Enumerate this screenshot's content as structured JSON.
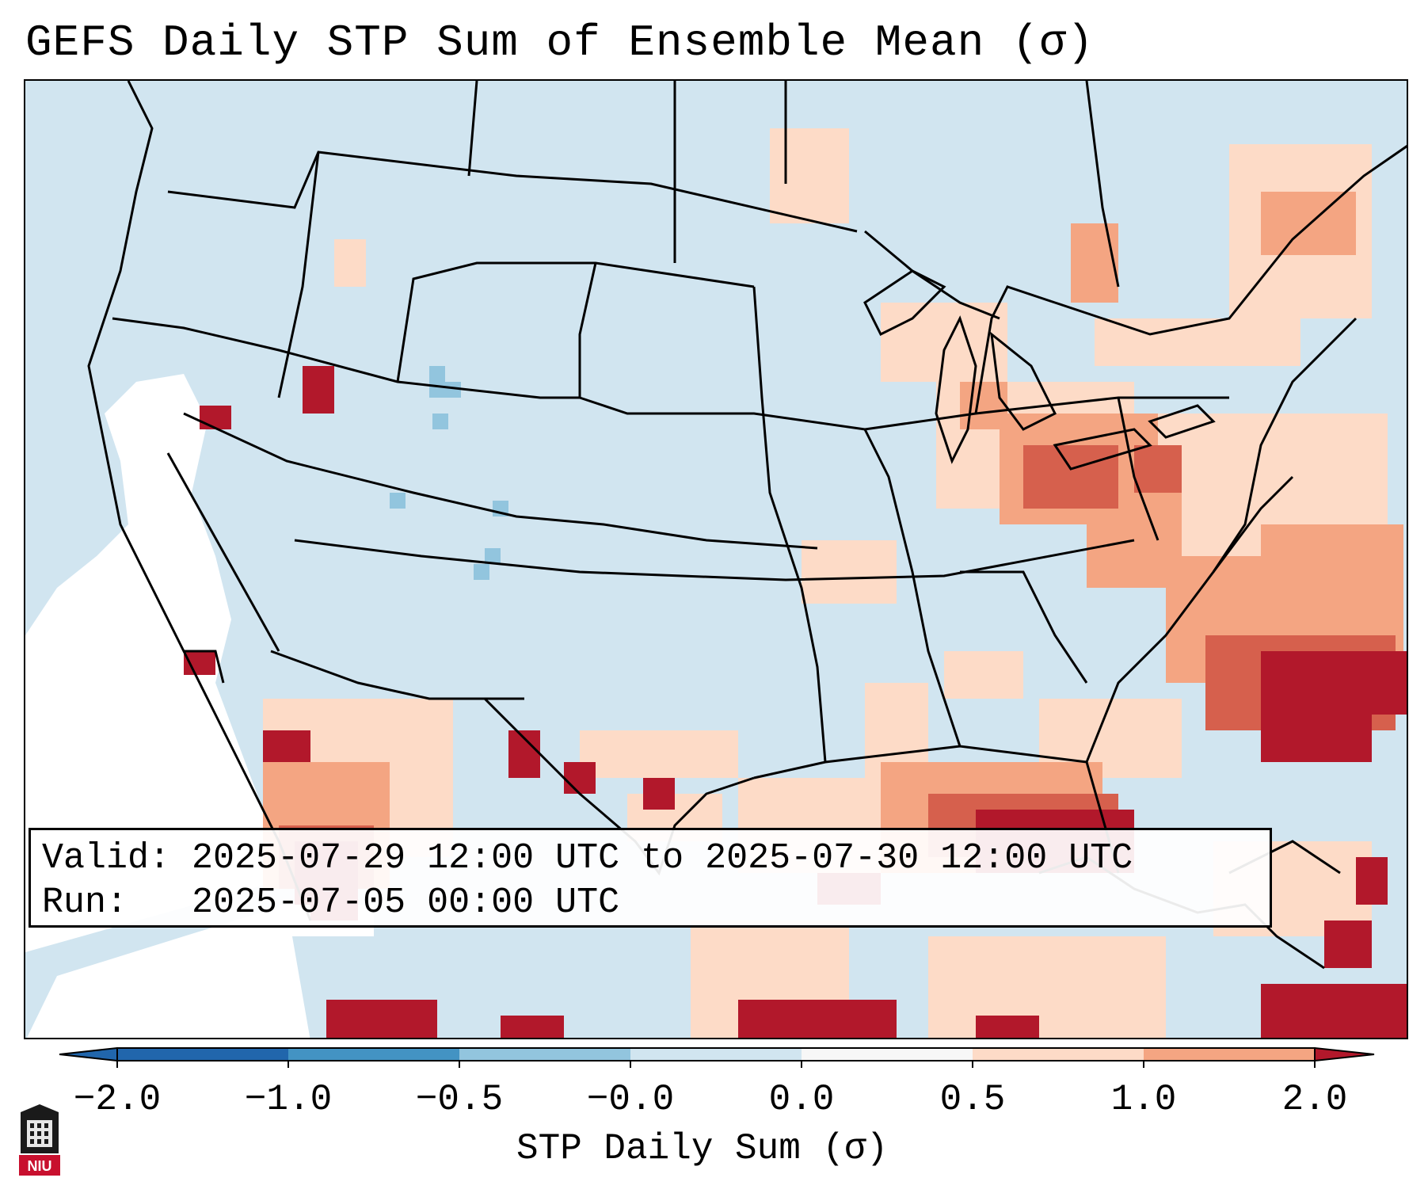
{
  "title": "GEFS Daily STP Sum of Ensemble Mean (σ)",
  "info": {
    "valid_label": "Valid:",
    "valid_value": "2025-07-29 12:00 UTC to 2025-07-30 12:00 UTC",
    "run_label": "Run:",
    "run_value": "2025-07-05 00:00 UTC"
  },
  "colorbar": {
    "label": "STP Daily Sum (σ)",
    "ticks": [
      "−2.0",
      "−1.0",
      "−0.5",
      "−0.0",
      "0.0",
      "0.5",
      "1.0",
      "2.0"
    ],
    "colors": [
      "#2166ac",
      "#4393c3",
      "#92c5de",
      "#d1e5f0",
      "#f7f7f7",
      "#fddbc7",
      "#f4a582",
      "#d6604d",
      "#b2182b"
    ]
  },
  "map": {
    "projection": "Lambert Conformal (CONUS)",
    "background_color": "#d1e5f0",
    "legend": {
      "light_positive": "#fddbc7",
      "medium_positive": "#f4a582",
      "strong_positive": "#d6604d",
      "max_positive": "#b2182b",
      "near_zero": "#ffffff",
      "negative": "#92c5de"
    }
  },
  "logo": {
    "text": "NIU"
  }
}
